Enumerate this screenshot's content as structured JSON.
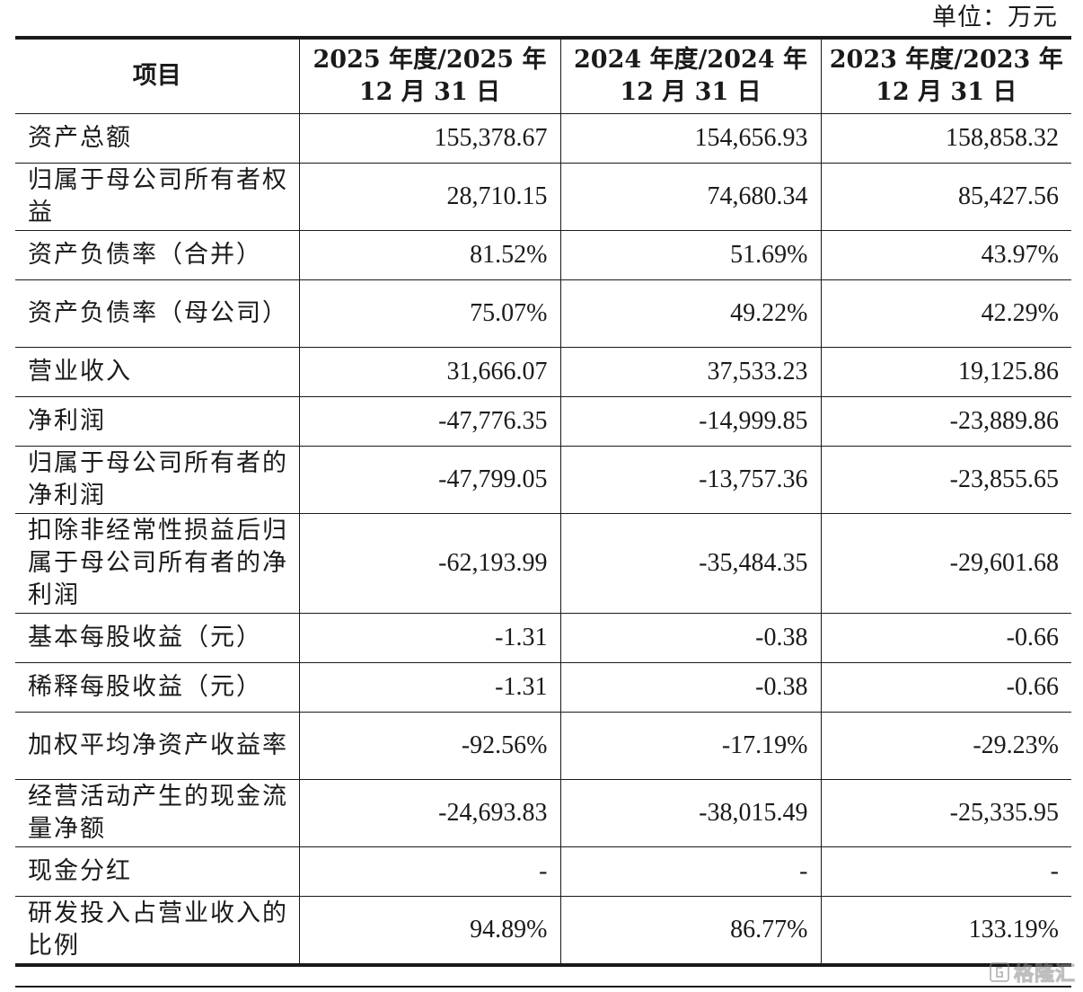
{
  "unit_label": "单位：万元",
  "table": {
    "headers": [
      "项目",
      "2025 年度/2025 年 12 月 31 日",
      "2024 年度/2024 年 12 月 31 日",
      "2023 年度/2023 年 12 月 31 日"
    ],
    "rows": [
      {
        "label": "资产总额",
        "values": [
          "155,378.67",
          "154,656.93",
          "158,858.32"
        ]
      },
      {
        "label": "归属于母公司所有者权益",
        "values": [
          "28,710.15",
          "74,680.34",
          "85,427.56"
        ]
      },
      {
        "label": "资产负债率（合并）",
        "values": [
          "81.52%",
          "51.69%",
          "43.97%"
        ]
      },
      {
        "label": "资产负债率（母公司）",
        "values": [
          "75.07%",
          "49.22%",
          "42.29%"
        ]
      },
      {
        "label": "营业收入",
        "values": [
          "31,666.07",
          "37,533.23",
          "19,125.86"
        ]
      },
      {
        "label": "净利润",
        "values": [
          "-47,776.35",
          "-14,999.85",
          "-23,889.86"
        ]
      },
      {
        "label": "归属于母公司所有者的净利润",
        "values": [
          "-47,799.05",
          "-13,757.36",
          "-23,855.65"
        ]
      },
      {
        "label": "扣除非经常性损益后归属于母公司所有者的净利润",
        "values": [
          "-62,193.99",
          "-35,484.35",
          "-29,601.68"
        ]
      },
      {
        "label": "基本每股收益（元）",
        "values": [
          "-1.31",
          "-0.38",
          "-0.66"
        ]
      },
      {
        "label": "稀释每股收益（元）",
        "values": [
          "-1.31",
          "-0.38",
          "-0.66"
        ]
      },
      {
        "label": "加权平均净资产收益率",
        "values": [
          "-92.56%",
          "-17.19%",
          "-29.23%"
        ]
      },
      {
        "label": "经营活动产生的现金流量净额",
        "values": [
          "-24,693.83",
          "-38,015.49",
          "-25,335.95"
        ]
      },
      {
        "label": "现金分红",
        "values": [
          "-",
          "-",
          "-"
        ]
      },
      {
        "label": "研发投入占营业收入的比例",
        "values": [
          "94.89%",
          "86.77%",
          "133.19%"
        ]
      }
    ]
  },
  "watermark": {
    "text": "格隆汇",
    "icon": "gelonghui-logo-icon"
  }
}
